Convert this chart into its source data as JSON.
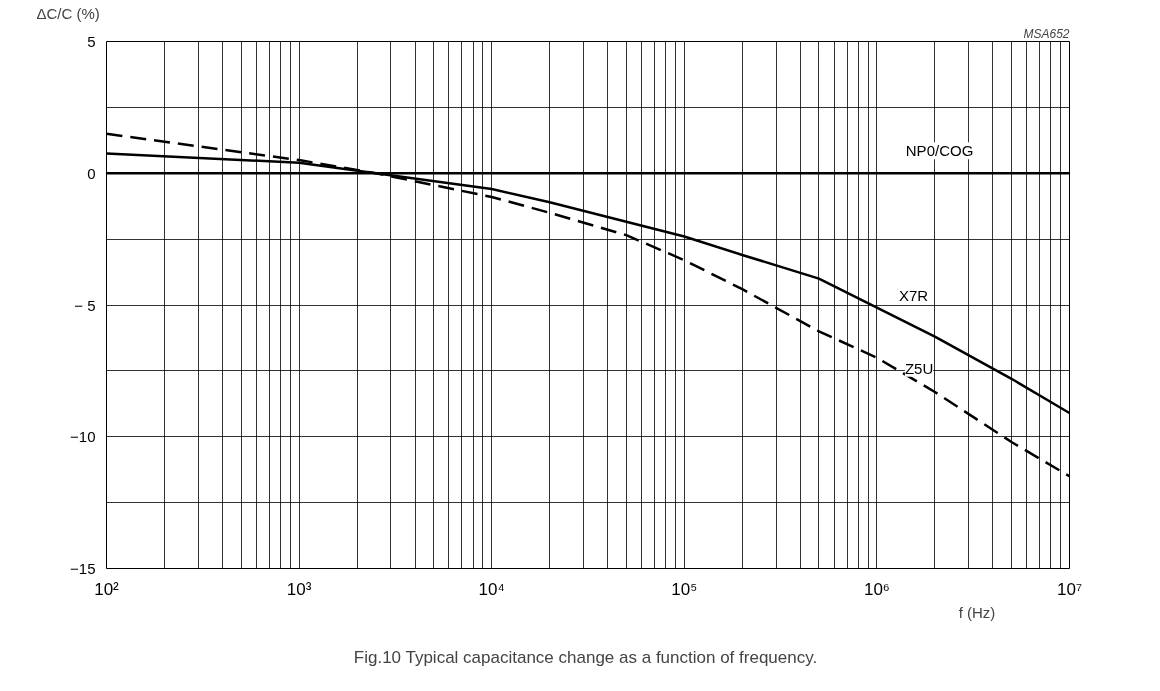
{
  "chart_data": {
    "type": "line",
    "title": "Fig.10  Typical capacitance change as a function of frequency.",
    "xlabel": "f  (Hz)",
    "ylabel": "ΔC/C (%)",
    "annotations": [
      "MSA652"
    ],
    "log": "x",
    "grid": true,
    "legend": false,
    "marker": "none",
    "xlim": [
      100,
      10000000
    ],
    "ylim": [
      -15,
      5
    ],
    "yticks": [
      5,
      {
        "value": 2.5,
        "label": null
      },
      0,
      {
        "value": -2.5,
        "label": null
      },
      {
        "value": -5,
        "label": "− 5"
      },
      {
        "value": -7.5,
        "label": null
      },
      {
        "value": -10,
        "label": "−10"
      },
      {
        "value": -12.5,
        "label": null
      },
      {
        "value": -15,
        "label": "−15"
      }
    ],
    "xticks": [
      {
        "value": 100,
        "label": "10²"
      },
      {
        "value": 200,
        "label": null
      },
      {
        "value": 300,
        "label": null
      },
      {
        "value": 400,
        "label": null
      },
      {
        "value": 500,
        "label": null
      },
      {
        "value": 600,
        "label": null
      },
      {
        "value": 700,
        "label": null
      },
      {
        "value": 800,
        "label": null
      },
      {
        "value": 900,
        "label": null
      },
      {
        "value": 1000,
        "label": "10³"
      },
      {
        "value": 2000,
        "label": null
      },
      {
        "value": 3000,
        "label": null
      },
      {
        "value": 4000,
        "label": null
      },
      {
        "value": 5000,
        "label": null
      },
      {
        "value": 6000,
        "label": null
      },
      {
        "value": 7000,
        "label": null
      },
      {
        "value": 8000,
        "label": null
      },
      {
        "value": 9000,
        "label": null
      },
      {
        "value": 10000,
        "label": "10⁴"
      },
      {
        "value": 20000,
        "label": null
      },
      {
        "value": 30000,
        "label": null
      },
      {
        "value": 40000,
        "label": null
      },
      {
        "value": 50000,
        "label": null
      },
      {
        "value": 60000,
        "label": null
      },
      {
        "value": 70000,
        "label": null
      },
      {
        "value": 80000,
        "label": null
      },
      {
        "value": 90000,
        "label": null
      },
      {
        "value": 100000,
        "label": "10⁵"
      },
      {
        "value": 200000,
        "label": null
      },
      {
        "value": 300000,
        "label": null
      },
      {
        "value": 400000,
        "label": null
      },
      {
        "value": 500000,
        "label": null
      },
      {
        "value": 600000,
        "label": null
      },
      {
        "value": 700000,
        "label": null
      },
      {
        "value": 800000,
        "label": null
      },
      {
        "value": 900000,
        "label": null
      },
      {
        "value": 1000000,
        "label": "10⁶"
      },
      {
        "value": 2000000,
        "label": null
      },
      {
        "value": 3000000,
        "label": null
      },
      {
        "value": 4000000,
        "label": null
      },
      {
        "value": 5000000,
        "label": null
      },
      {
        "value": 6000000,
        "label": null
      },
      {
        "value": 7000000,
        "label": null
      },
      {
        "value": 8000000,
        "label": null
      },
      {
        "value": 9000000,
        "label": null
      },
      {
        "value": 10000000,
        "label": "10⁷"
      }
    ],
    "series": [
      {
        "name": "NP0/COG",
        "color": "#000000",
        "line_style": "solid",
        "x": [
          100,
          1000,
          10000,
          100000,
          1000000,
          10000000
        ],
        "values": [
          0,
          0,
          0,
          0,
          0,
          0
        ]
      },
      {
        "name": "X7R",
        "color": "#000000",
        "line_style": "solid",
        "x": [
          100,
          1000,
          2500,
          10000,
          20000,
          100000,
          200000,
          500000,
          1000000,
          2000000,
          5000000,
          10000000
        ],
        "values": [
          0.75,
          0.4,
          0,
          -0.6,
          -1.1,
          -2.4,
          -3.1,
          -4,
          -5.1,
          -6.2,
          -7.8,
          -9.1
        ]
      },
      {
        "name": "Z5U",
        "color": "#000000",
        "line_style": "dashed",
        "x": [
          100,
          1000,
          2500,
          10000,
          20000,
          50000,
          100000,
          200000,
          500000,
          1000000,
          2000000,
          5000000,
          10000000
        ],
        "values": [
          1.5,
          0.5,
          0,
          -0.9,
          -1.5,
          -2.35,
          -3.3,
          -4.4,
          -6,
          -7,
          -8.3,
          -10.2,
          -11.5
        ]
      }
    ]
  }
}
